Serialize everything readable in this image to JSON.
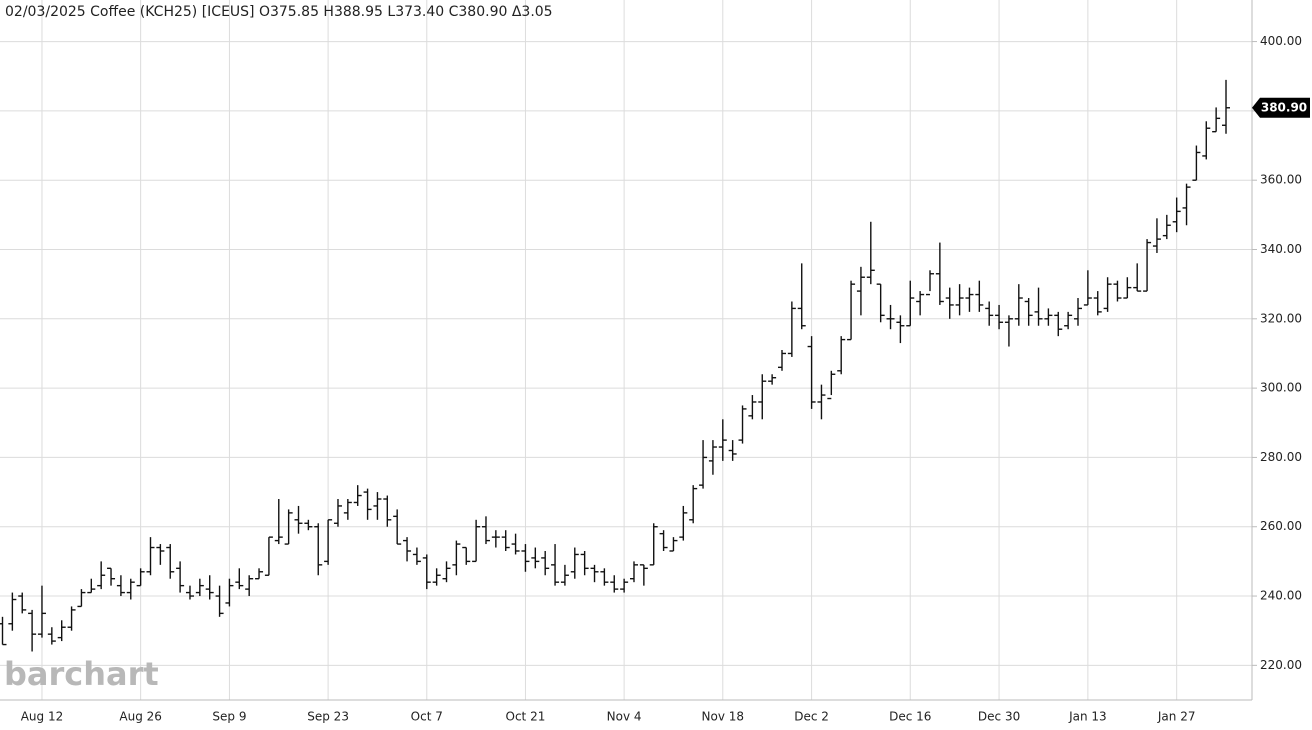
{
  "chart_data": {
    "type": "ohlc",
    "title": "02/03/2025 Coffee (KCH25) [ICEUS] O375.85 H388.95 L373.40 C380.90 Δ3.05",
    "watermark": "barchart",
    "color": "#111111",
    "grid": true,
    "ylim": [
      210,
      412
    ],
    "yticks": [
      {
        "value": 220,
        "label": "220.00"
      },
      {
        "value": 240,
        "label": "240.00"
      },
      {
        "value": 260,
        "label": "260.00"
      },
      {
        "value": 280,
        "label": "280.00"
      },
      {
        "value": 300,
        "label": "300.00"
      },
      {
        "value": 320,
        "label": "320.00"
      },
      {
        "value": 340,
        "label": "340.00"
      },
      {
        "value": 360,
        "label": "360.00"
      },
      {
        "value": 380,
        "label": "380.00"
      },
      {
        "value": 400,
        "label": "400.00"
      }
    ],
    "last_price": {
      "value": 380.9,
      "label": "380.90"
    },
    "categories": [
      null,
      null,
      null,
      null,
      "Aug 12",
      null,
      null,
      null,
      null,
      null,
      null,
      null,
      null,
      null,
      "Aug 26",
      null,
      null,
      null,
      null,
      null,
      null,
      null,
      null,
      "Sep 9",
      null,
      null,
      null,
      null,
      null,
      null,
      null,
      null,
      null,
      "Sep 23",
      null,
      null,
      null,
      null,
      null,
      null,
      null,
      null,
      null,
      "Oct 7",
      null,
      null,
      null,
      null,
      null,
      null,
      null,
      null,
      null,
      "Oct 21",
      null,
      null,
      null,
      null,
      null,
      null,
      null,
      null,
      null,
      "Nov 4",
      null,
      null,
      null,
      null,
      null,
      null,
      null,
      null,
      null,
      "Nov 18",
      null,
      null,
      null,
      null,
      null,
      null,
      null,
      null,
      "Dec 2",
      null,
      null,
      null,
      null,
      null,
      null,
      null,
      null,
      null,
      "Dec 16",
      null,
      null,
      null,
      null,
      null,
      null,
      null,
      null,
      "Dec 30",
      null,
      null,
      null,
      null,
      null,
      null,
      null,
      null,
      "Jan 13",
      null,
      null,
      null,
      null,
      null,
      null,
      null,
      null,
      "Jan 27",
      null,
      null,
      null,
      null,
      null
    ],
    "open": [
      232,
      232,
      240,
      235,
      229,
      229,
      228,
      231,
      237,
      241,
      243,
      248,
      243,
      241,
      243,
      247,
      254,
      254,
      248,
      241,
      241,
      242,
      240,
      238,
      244,
      242,
      245,
      246,
      256,
      255,
      262,
      261,
      260,
      250,
      261,
      264,
      267,
      270,
      266,
      268,
      263,
      256,
      252,
      251,
      244,
      245,
      249,
      254,
      250,
      260,
      257,
      257,
      255,
      253,
      251,
      251,
      249,
      244,
      247,
      252,
      248,
      247,
      244,
      242,
      245,
      249,
      249,
      258,
      253,
      257,
      262,
      272,
      279,
      283,
      282,
      285,
      292,
      296,
      302,
      306,
      310,
      323,
      312,
      296,
      297,
      305,
      314,
      328,
      332,
      330,
      320,
      319,
      318,
      325,
      327,
      333,
      326,
      324,
      326,
      327,
      323,
      321,
      319,
      320,
      325,
      322,
      320,
      321,
      318,
      320,
      324,
      326,
      323,
      330,
      326,
      329,
      328,
      341,
      344,
      348,
      352,
      360,
      367,
      374,
      375.85
    ],
    "high": [
      234,
      241,
      241,
      236,
      243,
      231,
      233,
      237,
      242,
      245,
      250,
      248,
      246,
      245,
      248,
      257,
      255,
      255,
      250,
      243,
      245,
      246,
      243,
      245,
      248,
      246,
      248,
      257,
      268,
      265,
      266,
      262,
      261,
      262,
      268,
      268,
      272,
      271,
      270,
      269,
      265,
      257,
      254,
      252,
      248,
      250,
      256,
      254,
      262,
      263,
      259,
      259,
      258,
      255,
      254,
      253,
      255,
      249,
      254,
      253,
      249,
      248,
      246,
      245,
      250,
      249,
      261,
      259,
      257,
      266,
      272,
      285,
      285,
      291,
      285,
      295,
      298,
      304,
      304,
      311,
      325,
      336,
      315,
      301,
      305,
      315,
      331,
      335,
      348,
      330,
      324,
      321,
      331,
      328,
      334,
      342,
      329,
      330,
      329,
      331,
      325,
      324,
      321,
      330,
      326,
      329,
      323,
      322,
      322,
      326,
      334,
      328,
      332,
      331,
      332,
      336,
      343,
      349,
      350,
      355,
      359,
      370,
      377,
      381,
      388.95
    ],
    "low": [
      226,
      230,
      235,
      224,
      228,
      226,
      227,
      230,
      237,
      241,
      242,
      243,
      240,
      239,
      243,
      246,
      249,
      245,
      241,
      239,
      240,
      239,
      234,
      237,
      242,
      240,
      245,
      246,
      255,
      255,
      258,
      259,
      246,
      249,
      260,
      262,
      266,
      262,
      262,
      260,
      255,
      250,
      249,
      242,
      243,
      244,
      246,
      249,
      250,
      255,
      254,
      253,
      252,
      247,
      248,
      246,
      243,
      243,
      245,
      246,
      244,
      243,
      241,
      241,
      244,
      243,
      249,
      253,
      253,
      256,
      261,
      271,
      275,
      279,
      279,
      284,
      291,
      291,
      301,
      305,
      309,
      317,
      294,
      291,
      298,
      304,
      314,
      321,
      330,
      319,
      317,
      313,
      318,
      321,
      328,
      324,
      320,
      321,
      322,
      322,
      318,
      317,
      312,
      318,
      318,
      318,
      318,
      315,
      317,
      318,
      324,
      321,
      322,
      325,
      326,
      328,
      328,
      339,
      343,
      345,
      347,
      360,
      366,
      374,
      373.4
    ],
    "close": [
      226,
      239,
      236,
      229,
      235,
      227,
      231,
      236,
      241,
      242,
      246,
      245,
      241,
      244,
      247,
      254,
      253,
      247,
      243,
      240,
      243,
      241,
      235,
      243,
      243,
      245,
      247,
      257,
      257,
      264,
      261,
      260,
      249,
      262,
      266,
      267,
      269,
      265,
      268,
      262,
      255,
      253,
      250,
      244,
      246,
      248,
      255,
      250,
      260,
      256,
      257,
      254,
      253,
      250,
      250,
      248,
      244,
      246,
      252,
      248,
      247,
      244,
      242,
      244,
      249,
      248,
      260,
      254,
      256,
      264,
      271,
      280,
      283,
      285,
      281,
      294,
      296,
      302,
      303,
      310,
      323,
      318,
      296,
      298,
      304,
      314,
      330,
      332,
      334,
      321,
      320,
      318,
      326,
      327,
      333,
      325,
      324,
      326,
      327,
      324,
      321,
      319,
      320,
      326,
      321,
      320,
      321,
      317,
      321,
      323,
      326,
      322,
      330,
      326,
      329,
      328,
      342,
      343,
      347,
      351,
      358,
      368,
      375,
      377.85,
      380.9
    ]
  }
}
